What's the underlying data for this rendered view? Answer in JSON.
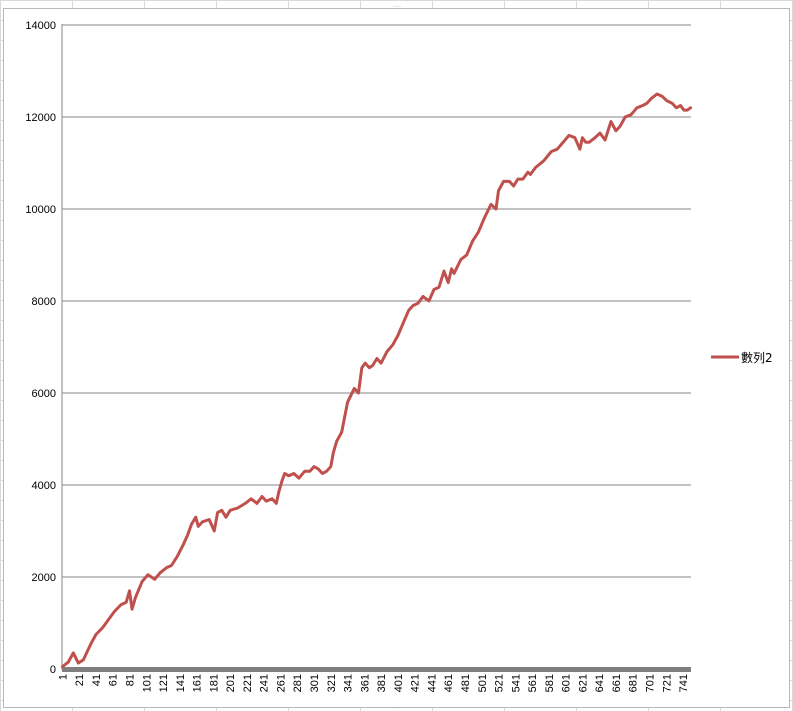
{
  "chart_data": {
    "type": "line",
    "title": "",
    "xlabel": "",
    "ylabel": "",
    "ylim": [
      0,
      14000
    ],
    "y_ticks": [
      0,
      2000,
      4000,
      6000,
      8000,
      10000,
      12000,
      14000
    ],
    "x_count": 750,
    "x_tick_labels": [
      "1",
      "21",
      "41",
      "61",
      "81",
      "101",
      "121",
      "141",
      "161",
      "181",
      "201",
      "221",
      "241",
      "261",
      "281",
      "301",
      "321",
      "341",
      "361",
      "381",
      "401",
      "421",
      "441",
      "461",
      "481",
      "501",
      "521",
      "541",
      "561",
      "581",
      "601",
      "621",
      "641",
      "661",
      "681",
      "701",
      "721",
      "741"
    ],
    "grid": "horizontal",
    "legend_position": "right",
    "series": [
      {
        "name": "數列2",
        "color": "#c0504d",
        "x": [
          1,
          8,
          14,
          20,
          26,
          35,
          41,
          49,
          57,
          63,
          71,
          77,
          81,
          84,
          88,
          96,
          103,
          111,
          118,
          125,
          131,
          138,
          145,
          150,
          155,
          160,
          163,
          168,
          176,
          182,
          186,
          191,
          196,
          201,
          210,
          219,
          226,
          233,
          239,
          244,
          251,
          256,
          259,
          263,
          266,
          271,
          277,
          283,
          290,
          296,
          301,
          306,
          311,
          316,
          321,
          324,
          328,
          334,
          341,
          349,
          354,
          358,
          362,
          367,
          371,
          376,
          381,
          388,
          395,
          401,
          408,
          414,
          419,
          425,
          431,
          438,
          444,
          450,
          456,
          461,
          465,
          468,
          476,
          483,
          490,
          497,
          504,
          512,
          518,
          521,
          527,
          534,
          539,
          544,
          550,
          556,
          559,
          565,
          575,
          584,
          591,
          598,
          605,
          612,
          618,
          621,
          625,
          629,
          636,
          642,
          648,
          655,
          661,
          666,
          672,
          679,
          686,
          693,
          698,
          703,
          710,
          716,
          722,
          728,
          733,
          738,
          742,
          746,
          750
        ],
        "y": [
          50,
          150,
          350,
          130,
          200,
          550,
          750,
          900,
          1100,
          1250,
          1400,
          1450,
          1700,
          1300,
          1550,
          1900,
          2050,
          1950,
          2100,
          2200,
          2250,
          2450,
          2700,
          2900,
          3150,
          3300,
          3100,
          3200,
          3250,
          3000,
          3400,
          3450,
          3300,
          3450,
          3500,
          3600,
          3700,
          3600,
          3750,
          3650,
          3700,
          3600,
          3850,
          4100,
          4250,
          4200,
          4250,
          4150,
          4300,
          4300,
          4400,
          4350,
          4250,
          4300,
          4400,
          4700,
          4950,
          5150,
          5800,
          6100,
          6000,
          6550,
          6650,
          6550,
          6600,
          6750,
          6650,
          6900,
          7050,
          7250,
          7550,
          7800,
          7900,
          7950,
          8100,
          8000,
          8250,
          8300,
          8650,
          8400,
          8700,
          8600,
          8900,
          9000,
          9300,
          9500,
          9800,
          10100,
          10000,
          10400,
          10600,
          10600,
          10500,
          10650,
          10650,
          10800,
          10750,
          10900,
          11050,
          11250,
          11300,
          11450,
          11600,
          11550,
          11300,
          11550,
          11450,
          11450,
          11550,
          11650,
          11500,
          11900,
          11700,
          11800,
          12000,
          12050,
          12200,
          12250,
          12300,
          12400,
          12500,
          12450,
          12350,
          12300,
          12200,
          12250,
          12150,
          12150,
          12200
        ]
      }
    ]
  }
}
